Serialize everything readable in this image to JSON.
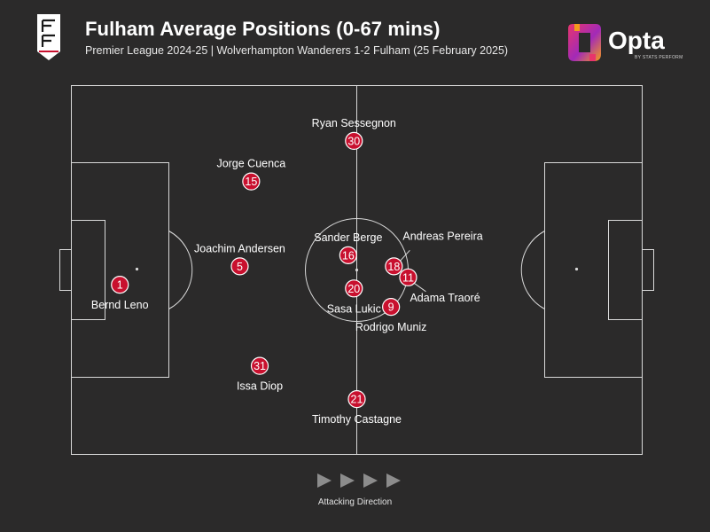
{
  "header": {
    "title": "Fulham Average Positions (0-67 mins)",
    "subtitle": "Premier League 2024-25 | Wolverhampton Wanderers 1-2 Fulham (25 February 2025)"
  },
  "brand": {
    "name": "Opta",
    "byline": "BY STATS PERFORM",
    "crest_icon": "fulham-crest-icon",
    "logo_icon": "opta-logo-icon"
  },
  "colors": {
    "background": "#2b2a2a",
    "pitch_lines": "#d9d9d9",
    "player_marker": "#c8102e",
    "text": "#ffffff"
  },
  "footer": {
    "direction_label": "Attacking Direction",
    "arrow_icon": "play-arrow-icon"
  },
  "chart_data": {
    "type": "scatter",
    "title": "Fulham Average Positions (0-67 mins)",
    "x_axis": "pitch length, 0 = own goal line, 100 = opponent goal line",
    "y_axis": "pitch width, 0 = top touchline, 100 = bottom touchline",
    "xlim": [
      0,
      100
    ],
    "ylim": [
      0,
      100
    ],
    "points": [
      {
        "number": "1",
        "name": "Bernd Leno",
        "x": 8.5,
        "y": 54,
        "label_pos": "below"
      },
      {
        "number": "5",
        "name": "Joachim Andersen",
        "x": 29.5,
        "y": 49,
        "label_pos": "above"
      },
      {
        "number": "15",
        "name": "Jorge Cuenca",
        "x": 31.5,
        "y": 26,
        "label_pos": "above"
      },
      {
        "number": "31",
        "name": "Issa Diop",
        "x": 33,
        "y": 76,
        "label_pos": "below"
      },
      {
        "number": "16",
        "name": "Sander Berge",
        "x": 48.5,
        "y": 46,
        "label_pos": "above"
      },
      {
        "number": "20",
        "name": "Sasa Lukic",
        "x": 49.5,
        "y": 55,
        "label_pos": "below"
      },
      {
        "number": "30",
        "name": "Ryan Sessegnon",
        "x": 49.5,
        "y": 15,
        "label_pos": "above"
      },
      {
        "number": "21",
        "name": "Timothy Castagne",
        "x": 50,
        "y": 85,
        "label_pos": "below"
      },
      {
        "number": "18",
        "name": "Andreas Pereira",
        "x": 56.5,
        "y": 49,
        "label_pos": "above"
      },
      {
        "number": "11",
        "name": "Adama Traoré",
        "x": 59,
        "y": 52,
        "label_pos": "below"
      },
      {
        "number": "9",
        "name": "Rodrigo Muniz",
        "x": 56,
        "y": 60,
        "label_pos": "below"
      }
    ]
  }
}
